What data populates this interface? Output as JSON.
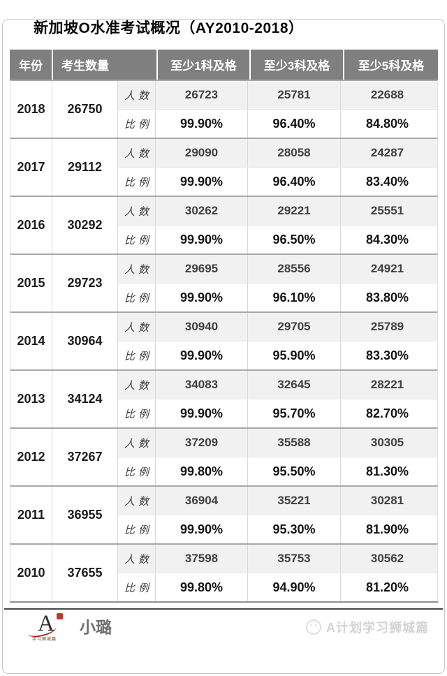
{
  "title": "新加坡O水准考试概况（AY2010-2018）",
  "chart_data": {
    "type": "table",
    "title": "新加坡O水准考试概况（AY2010-2018）",
    "columns": [
      "年份",
      "考生数量",
      "至少1科及格",
      "至少3科及格",
      "至少5科及格"
    ],
    "sub_row_labels": {
      "count": "人数",
      "ratio": "比例"
    },
    "rows": [
      {
        "year": "2018",
        "candidates": "26750",
        "counts": [
          "26723",
          "25781",
          "22688"
        ],
        "ratios": [
          "99.90%",
          "96.40%",
          "84.80%"
        ]
      },
      {
        "year": "2017",
        "candidates": "29112",
        "counts": [
          "29090",
          "28058",
          "24287"
        ],
        "ratios": [
          "99.90%",
          "96.40%",
          "83.40%"
        ]
      },
      {
        "year": "2016",
        "candidates": "30292",
        "counts": [
          "30262",
          "29221",
          "25551"
        ],
        "ratios": [
          "99.90%",
          "96.50%",
          "84.30%"
        ]
      },
      {
        "year": "2015",
        "candidates": "29723",
        "counts": [
          "29695",
          "28556",
          "24921"
        ],
        "ratios": [
          "99.90%",
          "96.10%",
          "83.80%"
        ]
      },
      {
        "year": "2014",
        "candidates": "30964",
        "counts": [
          "30940",
          "29705",
          "25789"
        ],
        "ratios": [
          "99.90%",
          "95.90%",
          "83.30%"
        ]
      },
      {
        "year": "2013",
        "candidates": "34124",
        "counts": [
          "34083",
          "32645",
          "28221"
        ],
        "ratios": [
          "99.90%",
          "95.70%",
          "82.70%"
        ]
      },
      {
        "year": "2012",
        "candidates": "37267",
        "counts": [
          "37209",
          "35588",
          "30305"
        ],
        "ratios": [
          "99.80%",
          "95.50%",
          "81.30%"
        ]
      },
      {
        "year": "2011",
        "candidates": "36955",
        "counts": [
          "36904",
          "35221",
          "30281"
        ],
        "ratios": [
          "99.90%",
          "95.30%",
          "81.90%"
        ]
      },
      {
        "year": "2010",
        "candidates": "37655",
        "counts": [
          "37598",
          "35753",
          "30562"
        ],
        "ratios": [
          "99.80%",
          "94.90%",
          "81.20%"
        ]
      }
    ]
  },
  "header": {
    "year": "年份",
    "candidates": "考生数量",
    "pass1": "至少1科及格",
    "pass3": "至少3科及格",
    "pass5": "至少5科及格"
  },
  "labels": {
    "count": "人数",
    "ratio": "比例"
  },
  "footer": {
    "logo_letter": "A",
    "logo_subtext": "学习狮城篇",
    "brand_name": "小璐",
    "watermark_text": "A计划学习狮城篇"
  },
  "colors": {
    "header_bg": "#7f7f7f",
    "header_text": "#ffffff",
    "alt_row_bg": "#f1f1f1",
    "block_separator": "#a8a8a8",
    "cell_border": "#d9d9d9",
    "count_text": "#3f3f3f",
    "ratio_text": "#141414",
    "footer_rule": "#474747",
    "brand_text": "#6e6e6e",
    "watermark_text": "#d3d3d3",
    "logo_red": "#c0392b"
  }
}
